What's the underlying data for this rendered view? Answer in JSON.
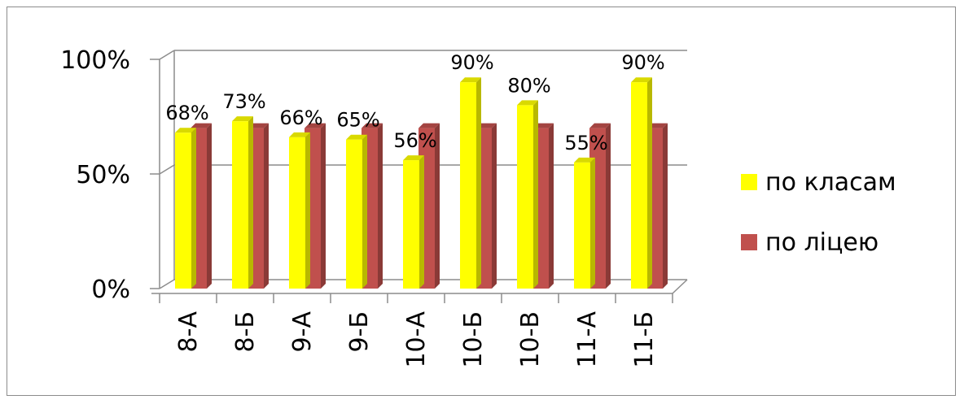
{
  "chart_data": {
    "type": "bar",
    "style": "3d-clustered-column",
    "categories": [
      "8-А",
      "8-Б",
      "9-А",
      "9-Б",
      "10-А",
      "10-Б",
      "10-В",
      "11-А",
      "11-Б"
    ],
    "series": [
      {
        "name": "по класам",
        "color": "#ffff00",
        "values": [
          68,
          73,
          66,
          65,
          56,
          90,
          80,
          55,
          90
        ],
        "labels": [
          "68%",
          "73%",
          "66%",
          "65%",
          "56%",
          "90%",
          "80%",
          "55%",
          "90%"
        ]
      },
      {
        "name": "по ліцею",
        "color": "#c0504d",
        "values": [
          70,
          70,
          70,
          70,
          70,
          70,
          70,
          70,
          70
        ]
      }
    ],
    "yticks": [
      "0%",
      "50%",
      "100%"
    ],
    "ylim": [
      0,
      100
    ],
    "grid": true,
    "legend": "right"
  }
}
